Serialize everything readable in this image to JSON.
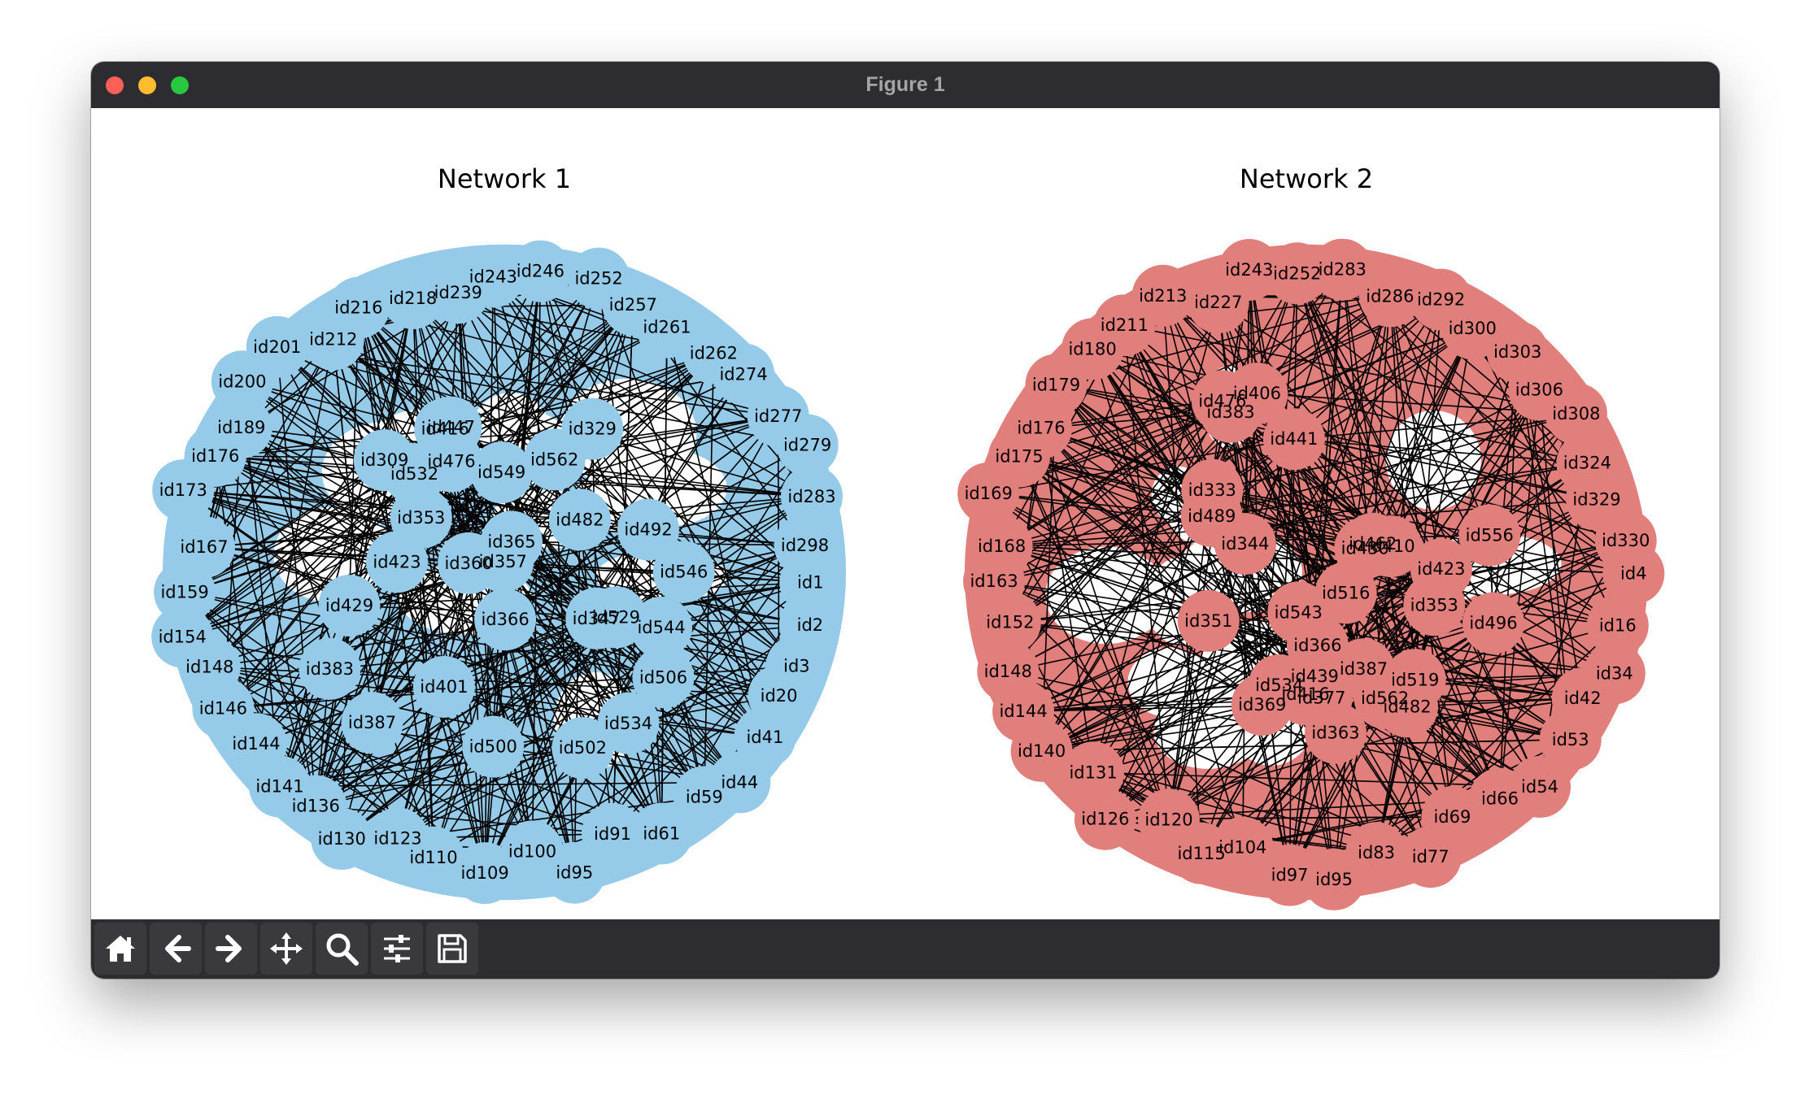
{
  "window": {
    "title": "Figure 1"
  },
  "toolbar": {
    "tools": [
      {
        "name": "home-icon"
      },
      {
        "name": "back-arrow-icon"
      },
      {
        "name": "forward-arrow-icon"
      },
      {
        "name": "pan-move-icon"
      },
      {
        "name": "zoom-magnifier-icon"
      },
      {
        "name": "configure-subplots-icon"
      },
      {
        "name": "save-floppy-icon"
      }
    ]
  },
  "chart_data": [
    {
      "type": "network",
      "title": "Network 1",
      "node_color": "#95cbe8",
      "edge_color": "#000000",
      "layout": "circular-cluster",
      "node_labels": [
        "id1",
        "id2",
        "id3",
        "id20",
        "id41",
        "id44",
        "id59",
        "id61",
        "id91",
        "id95",
        "id100",
        "id109",
        "id110",
        "id123",
        "id130",
        "id136",
        "id141",
        "id144",
        "id146",
        "id148",
        "id154",
        "id159",
        "id167",
        "id173",
        "id176",
        "id189",
        "id200",
        "id201",
        "id212",
        "id216",
        "id218",
        "id239",
        "id243",
        "id246",
        "id252",
        "id257",
        "id261",
        "id262",
        "id274",
        "id277",
        "id279",
        "id283",
        "id298",
        "id309",
        "id329",
        "id347",
        "id353",
        "id357",
        "id360",
        "id365",
        "id366",
        "id383",
        "id387",
        "id401",
        "id416",
        "id423",
        "id429",
        "id447",
        "id476",
        "id482",
        "id492",
        "id500",
        "id502",
        "id506",
        "id529",
        "id532",
        "id534",
        "id544",
        "id546",
        "id549",
        "id562"
      ]
    },
    {
      "type": "network",
      "title": "Network 2",
      "node_color": "#e07f7b",
      "edge_color": "#000000",
      "layout": "circular-cluster",
      "node_labels": [
        "id4",
        "id16",
        "id34",
        "id42",
        "id53",
        "id54",
        "id66",
        "id69",
        "id77",
        "id83",
        "id95",
        "id97",
        "id104",
        "id115",
        "id120",
        "id126",
        "id131",
        "id140",
        "id144",
        "id148",
        "id152",
        "id163",
        "id168",
        "id169",
        "id175",
        "id176",
        "id179",
        "id180",
        "id211",
        "id213",
        "id227",
        "id243",
        "id252",
        "id283",
        "id286",
        "id292",
        "id300",
        "id303",
        "id306",
        "id308",
        "id324",
        "id329",
        "id330",
        "id333",
        "id344",
        "id351",
        "id353",
        "id363",
        "id366",
        "id369",
        "id377",
        "id383",
        "id387",
        "id406",
        "id410",
        "id416",
        "id423",
        "id430",
        "id439",
        "id441",
        "id462",
        "id476",
        "id482",
        "id489",
        "id496",
        "id516",
        "id519",
        "id534",
        "id543",
        "id556",
        "id562"
      ]
    }
  ]
}
